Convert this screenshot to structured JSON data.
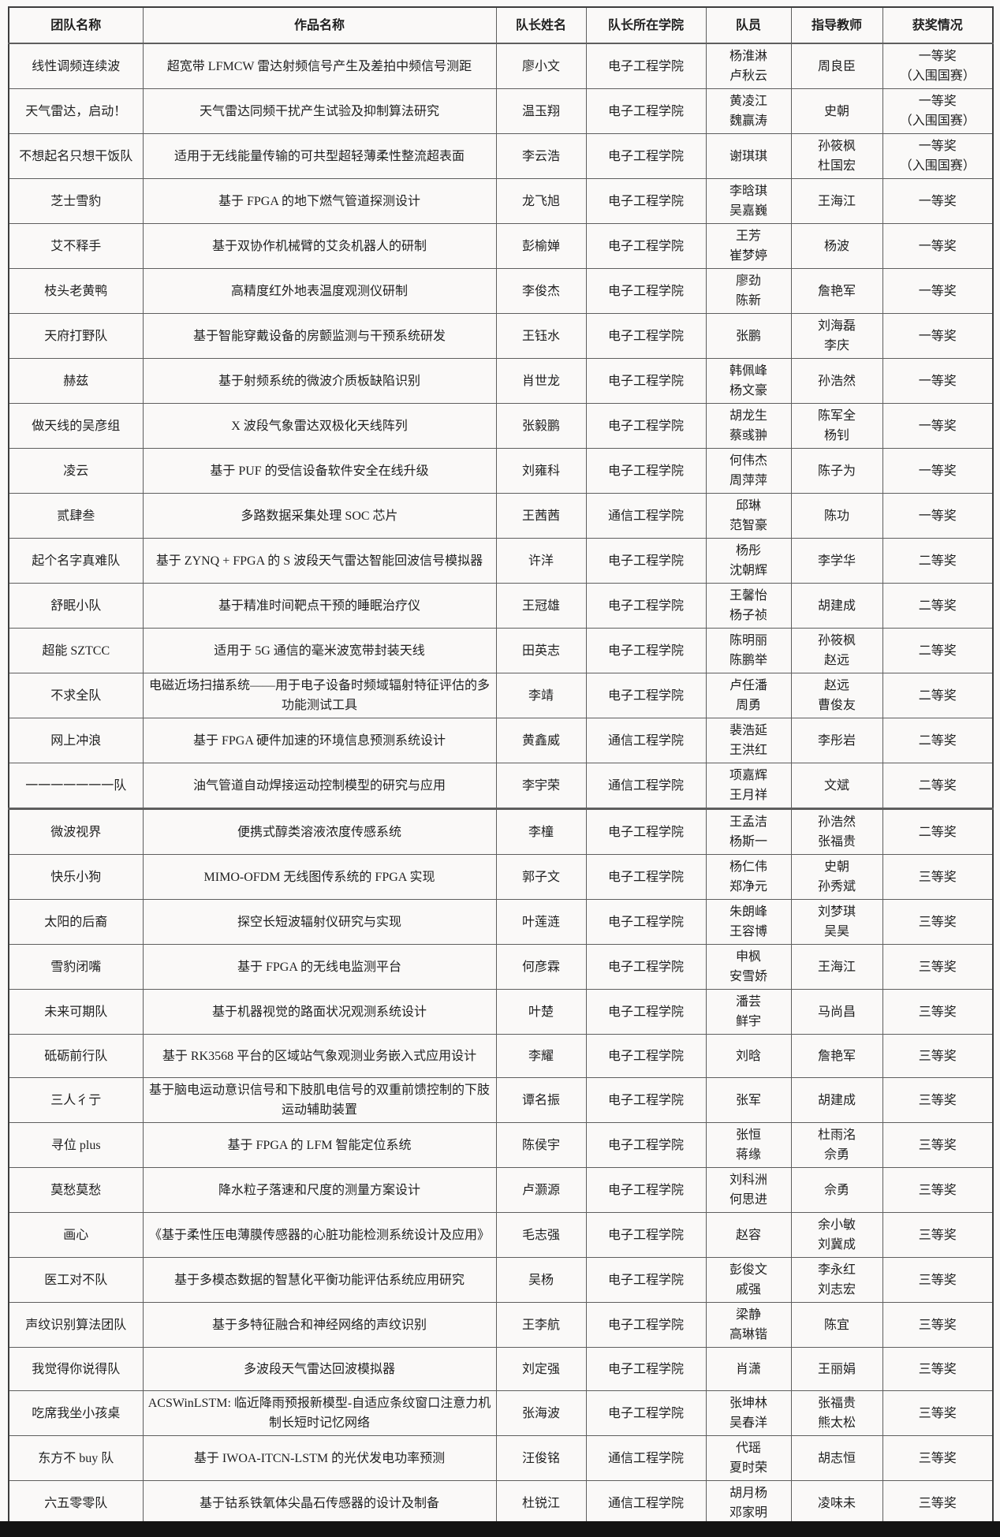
{
  "colors": {
    "paper": "#faf9f8",
    "border": "#5e5e5e",
    "text": "#1f1f1f",
    "bottom_bar": "#141414"
  },
  "table": {
    "columns": [
      {
        "key": "team",
        "label": "团队名称"
      },
      {
        "key": "work",
        "label": "作品名称"
      },
      {
        "key": "captain",
        "label": "队长姓名"
      },
      {
        "key": "college",
        "label": "队长所在学院"
      },
      {
        "key": "members",
        "label": "队员"
      },
      {
        "key": "advisors",
        "label": "指导教师"
      },
      {
        "key": "award",
        "label": "获奖情况"
      }
    ],
    "rows": [
      {
        "team": "线性调频连续波",
        "work": "超宽带 LFMCW 雷达射频信号产生及差拍中频信号测距",
        "captain": "廖小文",
        "college": "电子工程学院",
        "members": [
          "杨淮淋",
          "卢秋云"
        ],
        "advisors": [
          "周良臣"
        ],
        "award": [
          "一等奖",
          "（入围国赛）"
        ]
      },
      {
        "team": "天气雷达，启动！",
        "work": "天气雷达同频干扰产生试验及抑制算法研究",
        "captain": "温玉翔",
        "college": "电子工程学院",
        "members": [
          "黄凌江",
          "魏赢涛"
        ],
        "advisors": [
          "史朝"
        ],
        "award": [
          "一等奖",
          "（入围国赛）"
        ]
      },
      {
        "team": "不想起名只想干饭队",
        "work": "适用于无线能量传输的可共型超轻薄柔性整流超表面",
        "captain": "李云浩",
        "college": "电子工程学院",
        "members": [
          "谢琪琪"
        ],
        "advisors": [
          "孙筱枫",
          "杜国宏"
        ],
        "award": [
          "一等奖",
          "（入围国赛）"
        ]
      },
      {
        "team": "芝士雪豹",
        "work": "基于 FPGA 的地下燃气管道探测设计",
        "captain": "龙飞旭",
        "college": "电子工程学院",
        "members": [
          "李晗琪",
          "吴嘉巍"
        ],
        "advisors": [
          "王海江"
        ],
        "award": [
          "一等奖"
        ]
      },
      {
        "team": "艾不释手",
        "work": "基于双协作机械臂的艾灸机器人的研制",
        "captain": "彭榆婵",
        "college": "电子工程学院",
        "members": [
          "王芳",
          "崔梦婷"
        ],
        "advisors": [
          "杨波"
        ],
        "award": [
          "一等奖"
        ]
      },
      {
        "team": "枝头老黄鸭",
        "work": "高精度红外地表温度观测仪研制",
        "captain": "李俊杰",
        "college": "电子工程学院",
        "members": [
          "廖劲",
          "陈新"
        ],
        "advisors": [
          "詹艳军"
        ],
        "award": [
          "一等奖"
        ]
      },
      {
        "team": "天府打野队",
        "work": "基于智能穿戴设备的房颤监测与干预系统研发",
        "captain": "王钰水",
        "college": "电子工程学院",
        "members": [
          "张鹏"
        ],
        "advisors": [
          "刘海磊",
          "李庆"
        ],
        "award": [
          "一等奖"
        ]
      },
      {
        "team": "赫兹",
        "work": "基于射频系统的微波介质板缺陷识别",
        "captain": "肖世龙",
        "college": "电子工程学院",
        "members": [
          "韩佩峰",
          "杨文豪"
        ],
        "advisors": [
          "孙浩然"
        ],
        "award": [
          "一等奖"
        ]
      },
      {
        "team": "做天线的吴彦组",
        "work": "X 波段气象雷达双极化天线阵列",
        "captain": "张毅鹏",
        "college": "电子工程学院",
        "members": [
          "胡龙生",
          "蔡彧翀"
        ],
        "advisors": [
          "陈军全",
          "杨钊"
        ],
        "award": [
          "一等奖"
        ]
      },
      {
        "team": "凌云",
        "work": "基于 PUF 的受信设备软件安全在线升级",
        "captain": "刘雍科",
        "college": "电子工程学院",
        "members": [
          "何伟杰",
          "周萍萍"
        ],
        "advisors": [
          "陈子为"
        ],
        "award": [
          "一等奖"
        ]
      },
      {
        "team": "贰肆叁",
        "work": "多路数据采集处理 SOC 芯片",
        "captain": "王茜茜",
        "college": "通信工程学院",
        "members": [
          "邱琳",
          "范智豪"
        ],
        "advisors": [
          "陈功"
        ],
        "award": [
          "一等奖"
        ]
      },
      {
        "team": "起个名字真难队",
        "work": "基于 ZYNQ + FPGA 的 S 波段天气雷达智能回波信号模拟器",
        "captain": "许洋",
        "college": "电子工程学院",
        "members": [
          "杨彤",
          "沈朝辉"
        ],
        "advisors": [
          "李学华"
        ],
        "award": [
          "二等奖"
        ]
      },
      {
        "team": "舒眠小队",
        "work": "基于精准时间靶点干预的睡眠治疗仪",
        "captain": "王冠雄",
        "college": "电子工程学院",
        "members": [
          "王馨怡",
          "杨子祯"
        ],
        "advisors": [
          "胡建成"
        ],
        "award": [
          "二等奖"
        ]
      },
      {
        "team": "超能 SZTCC",
        "work": "适用于 5G 通信的毫米波宽带封装天线",
        "captain": "田英志",
        "college": "电子工程学院",
        "members": [
          "陈明丽",
          "陈鹏举"
        ],
        "advisors": [
          "孙筱枫",
          "赵远"
        ],
        "award": [
          "二等奖"
        ]
      },
      {
        "team": "不求全队",
        "work": "电磁近场扫描系统——用于电子设备时频域辐射特征评估的多功能测试工具",
        "captain": "李靖",
        "college": "电子工程学院",
        "members": [
          "卢任潘",
          "周勇"
        ],
        "advisors": [
          "赵远",
          "曹俊友"
        ],
        "award": [
          "二等奖"
        ]
      },
      {
        "team": "网上冲浪",
        "work": "基于 FPGA 硬件加速的环境信息预测系统设计",
        "captain": "黄鑫威",
        "college": "通信工程学院",
        "members": [
          "裴浩延",
          "王洪红"
        ],
        "advisors": [
          "李彤岩"
        ],
        "award": [
          "二等奖"
        ]
      },
      {
        "team": "一一一一一一一队",
        "work": "油气管道自动焊接运动控制模型的研究与应用",
        "captain": "李宇荣",
        "college": "通信工程学院",
        "members": [
          "项嘉辉",
          "王月祥"
        ],
        "advisors": [
          "文斌"
        ],
        "award": [
          "二等奖"
        ]
      },
      {
        "team": "微波视界",
        "work": "便携式醇类溶液浓度传感系统",
        "captain": "李橦",
        "college": "电子工程学院",
        "members": [
          "王孟洁",
          "杨斯一"
        ],
        "advisors": [
          "孙浩然",
          "张福贵"
        ],
        "award": [
          "二等奖"
        ]
      },
      {
        "team": "快乐小狗",
        "work": "MIMO-OFDM 无线图传系统的 FPGA 实现",
        "captain": "郭子文",
        "college": "电子工程学院",
        "members": [
          "杨仁伟",
          "郑净元"
        ],
        "advisors": [
          "史朝",
          "孙秀斌"
        ],
        "award": [
          "三等奖"
        ]
      },
      {
        "team": "太阳的后裔",
        "work": "探空长短波辐射仪研究与实现",
        "captain": "叶莲涟",
        "college": "电子工程学院",
        "members": [
          "朱朗峰",
          "王容博"
        ],
        "advisors": [
          "刘梦琪",
          "吴昊"
        ],
        "award": [
          "三等奖"
        ]
      },
      {
        "team": "雪豹闭嘴",
        "work": "基于 FPGA 的无线电监测平台",
        "captain": "何彦霖",
        "college": "电子工程学院",
        "members": [
          "申枫",
          "安雪娇"
        ],
        "advisors": [
          "王海江"
        ],
        "award": [
          "三等奖"
        ]
      },
      {
        "team": "未来可期队",
        "work": "基于机器视觉的路面状况观测系统设计",
        "captain": "叶楚",
        "college": "电子工程学院",
        "members": [
          "潘芸",
          "鲜宇"
        ],
        "advisors": [
          "马尚昌"
        ],
        "award": [
          "三等奖"
        ]
      },
      {
        "team": "砥砺前行队",
        "work": "基于 RK3568 平台的区域站气象观测业务嵌入式应用设计",
        "captain": "李耀",
        "college": "电子工程学院",
        "members": [
          "刘晗"
        ],
        "advisors": [
          "詹艳军"
        ],
        "award": [
          "三等奖"
        ]
      },
      {
        "team": "三人彳亍",
        "work": "基于脑电运动意识信号和下肢肌电信号的双重前馈控制的下肢运动辅助装置",
        "captain": "谭名振",
        "college": "电子工程学院",
        "members": [
          "张军"
        ],
        "advisors": [
          "胡建成"
        ],
        "award": [
          "三等奖"
        ]
      },
      {
        "team": "寻位 plus",
        "work": "基于 FPGA 的 LFM 智能定位系统",
        "captain": "陈侯宇",
        "college": "电子工程学院",
        "members": [
          "张恒",
          "蒋缘"
        ],
        "advisors": [
          "杜雨洺",
          "佘勇"
        ],
        "award": [
          "三等奖"
        ]
      },
      {
        "team": "莫愁莫愁",
        "work": "降水粒子落速和尺度的测量方案设计",
        "captain": "卢灏源",
        "college": "电子工程学院",
        "members": [
          "刘科洲",
          "何思进"
        ],
        "advisors": [
          "佘勇"
        ],
        "award": [
          "三等奖"
        ]
      },
      {
        "team": "画心",
        "work": "《基于柔性压电薄膜传感器的心脏功能检测系统设计及应用》",
        "captain": "毛志强",
        "college": "电子工程学院",
        "members": [
          "赵容"
        ],
        "advisors": [
          "余小敏",
          "刘冀成"
        ],
        "award": [
          "三等奖"
        ]
      },
      {
        "team": "医工对不队",
        "work": "基于多模态数据的智慧化平衡功能评估系统应用研究",
        "captain": "吴杨",
        "college": "电子工程学院",
        "members": [
          "彭俊文",
          "戚强"
        ],
        "advisors": [
          "李永红",
          "刘志宏"
        ],
        "award": [
          "三等奖"
        ]
      },
      {
        "team": "声纹识别算法团队",
        "work": "基于多特征融合和神经网络的声纹识别",
        "captain": "王李航",
        "college": "电子工程学院",
        "members": [
          "梁静",
          "高琳锴"
        ],
        "advisors": [
          "陈宜"
        ],
        "award": [
          "三等奖"
        ]
      },
      {
        "team": "我觉得你说得队",
        "work": "多波段天气雷达回波模拟器",
        "captain": "刘定强",
        "college": "电子工程学院",
        "members": [
          "肖潇"
        ],
        "advisors": [
          "王丽娟"
        ],
        "award": [
          "三等奖"
        ]
      },
      {
        "team": "吃席我坐小孩桌",
        "work": "ACSWinLSTM: 临近降雨预报新模型-自适应条纹窗口注意力机制长短时记忆网络",
        "captain": "张海波",
        "college": "电子工程学院",
        "members": [
          "张坤林",
          "吴春洋"
        ],
        "advisors": [
          "张福贵",
          "熊太松"
        ],
        "award": [
          "三等奖"
        ]
      },
      {
        "team": "东方不 buy 队",
        "work": "基于 IWOA-ITCN-LSTM 的光伏发电功率预测",
        "captain": "汪俊铭",
        "college": "通信工程学院",
        "members": [
          "代瑶",
          "夏时荣"
        ],
        "advisors": [
          "胡志恒"
        ],
        "award": [
          "三等奖"
        ]
      },
      {
        "team": "六五零零队",
        "work": "基于钴系铁氧体尖晶石传感器的设计及制备",
        "captain": "杜锐江",
        "college": "通信工程学院",
        "members": [
          "胡月杨",
          "邓家明"
        ],
        "advisors": [
          "凌味未"
        ],
        "award": [
          "三等奖"
        ]
      }
    ]
  }
}
